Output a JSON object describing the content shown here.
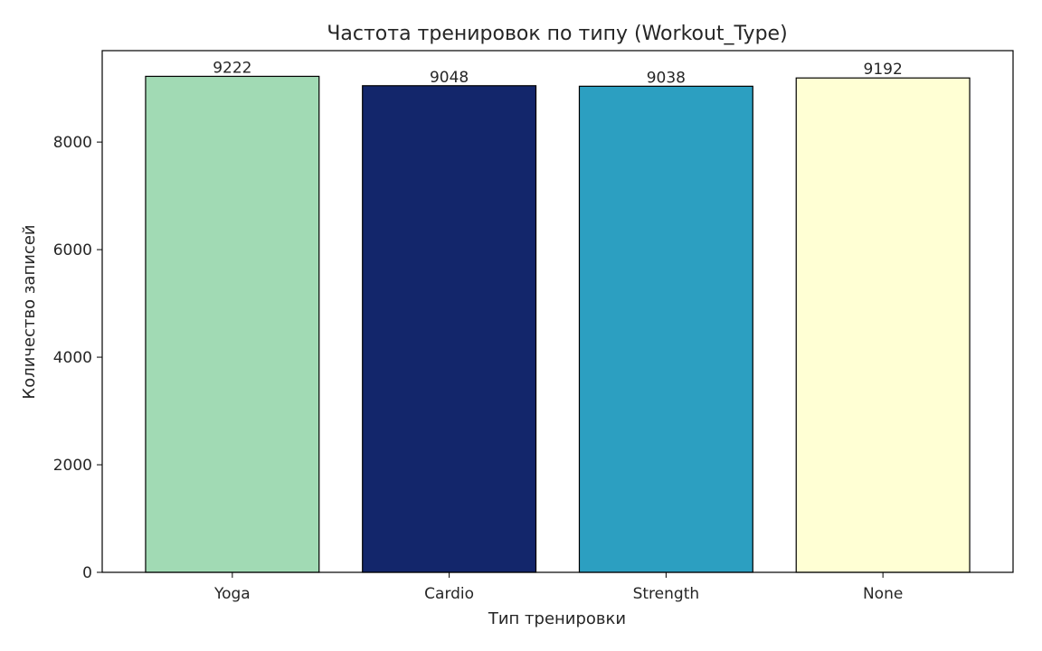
{
  "chart_data": {
    "type": "bar",
    "title": "Частота тренировок по типу (Workout_Type)",
    "xlabel": "Тип тренировки",
    "ylabel": "Количество записей",
    "categories": [
      "Yoga",
      "Cardio",
      "Strength",
      "None"
    ],
    "values": [
      9222,
      9048,
      9038,
      9192
    ],
    "colors": [
      "#a1dab4",
      "#13266b",
      "#2c9fc1",
      "#ffffd4"
    ],
    "bar_edge_color": "#000000",
    "ylim": [
      0,
      9700
    ],
    "yticks": [
      0,
      2000,
      4000,
      6000,
      8000
    ],
    "grid": false,
    "legend": "none"
  }
}
